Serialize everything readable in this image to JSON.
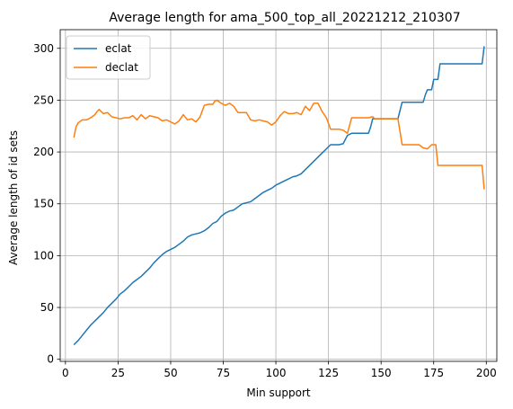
{
  "chart_data": {
    "type": "line",
    "title": "Average length for ama_500_top_all_20221212_210307",
    "xlabel": "Min support",
    "ylabel": "Average length of id sets",
    "xlim": [
      -2.5,
      205
    ],
    "ylim": [
      -2,
      318
    ],
    "xticks": [
      0,
      25,
      50,
      75,
      100,
      125,
      150,
      175,
      200
    ],
    "yticks": [
      0,
      50,
      100,
      150,
      200,
      250,
      300
    ],
    "grid": true,
    "legend_position": "top-left",
    "series": [
      {
        "name": "eclat",
        "color": "#1f77b4",
        "points": [
          [
            4,
            14
          ],
          [
            6,
            18
          ],
          [
            8,
            23
          ],
          [
            10,
            28
          ],
          [
            12,
            33
          ],
          [
            14,
            37
          ],
          [
            16,
            41
          ],
          [
            18,
            45
          ],
          [
            20,
            50
          ],
          [
            22,
            54
          ],
          [
            24,
            58
          ],
          [
            26,
            63
          ],
          [
            28,
            66
          ],
          [
            30,
            70
          ],
          [
            32,
            74
          ],
          [
            34,
            77
          ],
          [
            36,
            80
          ],
          [
            38,
            84
          ],
          [
            40,
            88
          ],
          [
            42,
            93
          ],
          [
            44,
            97
          ],
          [
            46,
            101
          ],
          [
            48,
            104
          ],
          [
            50,
            106
          ],
          [
            52,
            108
          ],
          [
            54,
            111
          ],
          [
            56,
            114
          ],
          [
            58,
            118
          ],
          [
            60,
            120
          ],
          [
            62,
            121
          ],
          [
            64,
            122
          ],
          [
            66,
            124
          ],
          [
            68,
            127
          ],
          [
            70,
            131
          ],
          [
            72,
            133
          ],
          [
            74,
            138
          ],
          [
            76,
            141
          ],
          [
            78,
            143
          ],
          [
            80,
            144
          ],
          [
            82,
            147
          ],
          [
            84,
            150
          ],
          [
            86,
            151
          ],
          [
            88,
            152
          ],
          [
            90,
            155
          ],
          [
            92,
            158
          ],
          [
            94,
            161
          ],
          [
            96,
            163
          ],
          [
            98,
            165
          ],
          [
            100,
            168
          ],
          [
            102,
            170
          ],
          [
            104,
            172
          ],
          [
            106,
            174
          ],
          [
            108,
            176
          ],
          [
            110,
            177
          ],
          [
            112,
            179
          ],
          [
            114,
            183
          ],
          [
            116,
            187
          ],
          [
            118,
            191
          ],
          [
            120,
            195
          ],
          [
            122,
            199
          ],
          [
            124,
            203
          ],
          [
            126,
            207
          ],
          [
            128,
            207
          ],
          [
            130,
            207
          ],
          [
            132,
            208
          ],
          [
            134,
            216
          ],
          [
            136,
            218
          ],
          [
            138,
            218
          ],
          [
            140,
            218
          ],
          [
            142,
            218
          ],
          [
            144,
            218
          ],
          [
            145,
            224
          ],
          [
            146,
            232
          ],
          [
            150,
            232
          ],
          [
            155,
            232
          ],
          [
            158,
            232
          ],
          [
            160,
            248
          ],
          [
            166,
            248
          ],
          [
            170,
            248
          ],
          [
            171,
            255
          ],
          [
            172,
            260
          ],
          [
            174,
            260
          ],
          [
            175,
            270
          ],
          [
            177,
            270
          ],
          [
            178,
            285
          ],
          [
            198,
            285
          ],
          [
            199,
            302
          ]
        ]
      },
      {
        "name": "declat",
        "color": "#ff7f0e",
        "points": [
          [
            4,
            214
          ],
          [
            5,
            224
          ],
          [
            6,
            228
          ],
          [
            8,
            231
          ],
          [
            10,
            231
          ],
          [
            12,
            233
          ],
          [
            14,
            236
          ],
          [
            15,
            239
          ],
          [
            16,
            241
          ],
          [
            18,
            237
          ],
          [
            20,
            238
          ],
          [
            22,
            234
          ],
          [
            24,
            233
          ],
          [
            26,
            232
          ],
          [
            28,
            233
          ],
          [
            30,
            233
          ],
          [
            32,
            235
          ],
          [
            34,
            231
          ],
          [
            36,
            236
          ],
          [
            38,
            232
          ],
          [
            40,
            235
          ],
          [
            42,
            234
          ],
          [
            44,
            233
          ],
          [
            46,
            230
          ],
          [
            48,
            231
          ],
          [
            50,
            229
          ],
          [
            52,
            227
          ],
          [
            54,
            230
          ],
          [
            56,
            236
          ],
          [
            58,
            231
          ],
          [
            60,
            232
          ],
          [
            62,
            229
          ],
          [
            64,
            234
          ],
          [
            66,
            245
          ],
          [
            68,
            246
          ],
          [
            70,
            246
          ],
          [
            71,
            249
          ],
          [
            72,
            250
          ],
          [
            74,
            247
          ],
          [
            76,
            245
          ],
          [
            78,
            247
          ],
          [
            80,
            244
          ],
          [
            82,
            238
          ],
          [
            84,
            238
          ],
          [
            86,
            238
          ],
          [
            88,
            231
          ],
          [
            90,
            230
          ],
          [
            92,
            231
          ],
          [
            94,
            230
          ],
          [
            96,
            229
          ],
          [
            98,
            226
          ],
          [
            100,
            229
          ],
          [
            102,
            235
          ],
          [
            104,
            239
          ],
          [
            106,
            237
          ],
          [
            108,
            237
          ],
          [
            110,
            238
          ],
          [
            112,
            236
          ],
          [
            114,
            244
          ],
          [
            116,
            240
          ],
          [
            118,
            247
          ],
          [
            120,
            247
          ],
          [
            122,
            239
          ],
          [
            124,
            233
          ],
          [
            126,
            222
          ],
          [
            128,
            222
          ],
          [
            130,
            222
          ],
          [
            132,
            221
          ],
          [
            134,
            218
          ],
          [
            136,
            233
          ],
          [
            140,
            233
          ],
          [
            144,
            233
          ],
          [
            146,
            234
          ],
          [
            147,
            232
          ],
          [
            150,
            232
          ],
          [
            155,
            232
          ],
          [
            158,
            232
          ],
          [
            160,
            207
          ],
          [
            166,
            207
          ],
          [
            168,
            207
          ],
          [
            170,
            204
          ],
          [
            172,
            203
          ],
          [
            174,
            207
          ],
          [
            176,
            207
          ],
          [
            177,
            187
          ],
          [
            198,
            187
          ],
          [
            199,
            164
          ]
        ]
      }
    ]
  }
}
